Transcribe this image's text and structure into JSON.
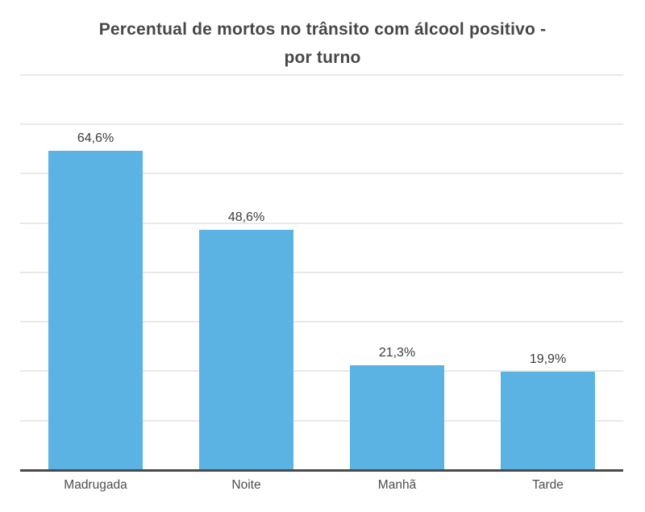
{
  "title": "Percentual de mortos no trânsito com álcool positivo - por turno",
  "title_lines": [
    "Percentual de mortos no trânsito com álcool positivo -",
    "por turno"
  ],
  "chart_data": {
    "type": "bar",
    "title": "Percentual de mortos no trânsito com álcool positivo - por turno",
    "categories": [
      "Madrugada",
      "Noite",
      "Manhã",
      "Tarde"
    ],
    "values": [
      64.6,
      48.6,
      21.3,
      19.9
    ],
    "value_labels": [
      "64,6%",
      "48,6%",
      "21,3%",
      "19,9%"
    ],
    "xlabel": "",
    "ylabel": "",
    "ylim": [
      0,
      80
    ],
    "grid": true,
    "grid_interval": 10,
    "y_tick_labels_visible": false,
    "legend": "none",
    "colors": {
      "bar": "#5bb3e3",
      "axis_line": "#4a4a4a",
      "gridline": "#e9e9e9",
      "title_text": "#474747",
      "value_label_text": "#3c3c3c",
      "category_label_text": "#4d4d4d",
      "background": "#ffffff"
    }
  }
}
